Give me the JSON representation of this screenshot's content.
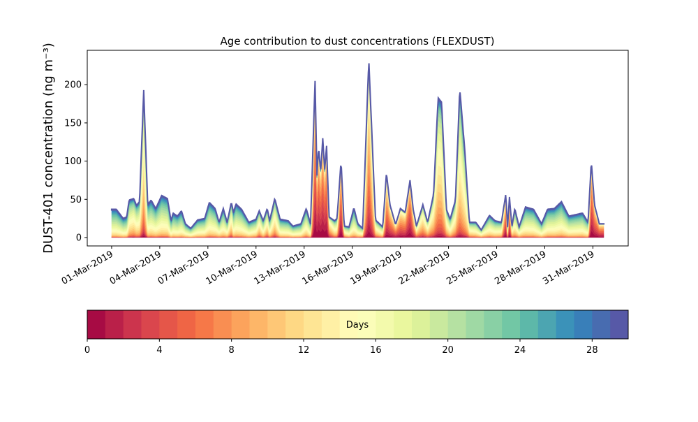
{
  "chart_data": {
    "type": "area",
    "stacked": true,
    "title": "Age contribution to dust concentrations (FLEXDUST)",
    "ylabel": "DUST-401 concentration (ng m⁻³)",
    "xlabel": "",
    "x_unit": "days since 01-Mar-2019",
    "xlim": [
      -1.52,
      32.2
    ],
    "ylim": [
      -11,
      245
    ],
    "yticks": [
      0,
      50,
      100,
      150,
      200
    ],
    "xticks": [
      0,
      3,
      6,
      9,
      12,
      15,
      18,
      21,
      24,
      27,
      30
    ],
    "xtick_labels": [
      "01-Mar-2019",
      "04-Mar-2019",
      "07-Mar-2019",
      "10-Mar-2019",
      "13-Mar-2019",
      "16-Mar-2019",
      "19-Mar-2019",
      "22-Mar-2019",
      "25-Mar-2019",
      "28-Mar-2019",
      "31-Mar-2019"
    ],
    "series_note": "30 stacked age classes (0-30 days); total concentration with dominant age per time",
    "total": {
      "x": [
        0,
        0.29,
        0.72,
        0.94,
        1.09,
        1.38,
        1.55,
        1.74,
        2.0,
        2.25,
        2.46,
        2.75,
        3.12,
        3.48,
        3.7,
        3.83,
        4.1,
        4.35,
        4.6,
        4.93,
        5.36,
        5.8,
        6.09,
        6.45,
        6.7,
        6.96,
        7.2,
        7.46,
        7.6,
        7.75,
        8.1,
        8.55,
        9.0,
        9.2,
        9.45,
        9.7,
        9.85,
        10.17,
        10.5,
        11.0,
        11.3,
        11.8,
        12.13,
        12.4,
        12.68,
        12.8,
        12.9,
        13.03,
        13.16,
        13.28,
        13.4,
        13.55,
        13.9,
        14.05,
        14.3,
        14.5,
        14.8,
        15.1,
        15.35,
        15.65,
        16.03,
        16.45,
        16.9,
        17.13,
        17.35,
        17.7,
        18.0,
        18.3,
        18.6,
        18.8,
        19.0,
        19.4,
        19.7,
        20.07,
        20.35,
        20.57,
        20.87,
        21.1,
        21.43,
        21.7,
        22.03,
        22.3,
        22.7,
        23.04,
        23.55,
        23.9,
        24.3,
        24.57,
        24.68,
        24.8,
        24.95,
        25.13,
        25.4,
        25.8,
        26.3,
        26.8,
        27.17,
        27.6,
        28.04,
        28.5,
        29.35,
        29.7,
        29.9,
        30.1,
        30.4,
        30.7
      ],
      "y": [
        37,
        37,
        25,
        27,
        49,
        51,
        42,
        47,
        193,
        43,
        49,
        38,
        55,
        51,
        22,
        32,
        28,
        35,
        18,
        12,
        23,
        25,
        46,
        38,
        20,
        38,
        20,
        46,
        33,
        44,
        37,
        20,
        24,
        35,
        22,
        38,
        22,
        51,
        24,
        22,
        15,
        18,
        38,
        18,
        205,
        82,
        118,
        87,
        130,
        90,
        120,
        27,
        22,
        25,
        100,
        15,
        14,
        39,
        18,
        12,
        233,
        23,
        14,
        85,
        43,
        17,
        38,
        33,
        75,
        37,
        15,
        43,
        20,
        57,
        183,
        177,
        37,
        24,
        49,
        195,
        110,
        20,
        20,
        10,
        29,
        22,
        20,
        57,
        14,
        53,
        14,
        38,
        14,
        40,
        37,
        18,
        37,
        38,
        47,
        28,
        32,
        20,
        100,
        43,
        18,
        18
      ],
      "dominant_age_days": [
        19,
        19,
        19,
        19,
        16,
        15,
        16,
        16,
        12,
        18,
        18,
        18,
        18,
        18,
        19,
        19,
        19,
        19,
        18,
        18,
        18,
        18,
        18,
        18,
        17,
        18,
        17,
        14,
        18,
        18,
        18,
        18,
        17,
        14,
        17,
        14,
        17,
        14,
        18,
        18,
        18,
        18,
        17,
        18,
        2,
        3,
        2,
        3,
        2,
        3,
        2,
        10,
        15,
        15,
        1,
        15,
        17,
        18,
        17,
        16,
        7,
        14,
        16,
        6,
        6,
        6,
        6,
        6,
        2,
        7,
        12,
        12,
        13,
        13,
        13,
        13,
        14,
        16,
        14,
        14,
        15,
        15,
        16,
        16,
        17,
        17,
        16,
        3,
        14,
        3,
        14,
        16,
        16,
        18,
        18,
        18,
        18,
        18,
        18,
        18,
        18,
        18,
        2,
        4,
        4,
        4
      ]
    },
    "colorbar": {
      "label": "Days",
      "range": [
        0,
        30
      ],
      "n_classes": 30,
      "ticks": [
        0,
        4,
        8,
        12,
        16,
        20,
        24,
        28
      ],
      "colormap_anchors": [
        "#9e0142",
        "#d53e4f",
        "#f46d43",
        "#fdae61",
        "#fee08b",
        "#ffffbf",
        "#e6f598",
        "#abdda4",
        "#66c2a5",
        "#3288bd",
        "#5e4fa2"
      ]
    }
  }
}
